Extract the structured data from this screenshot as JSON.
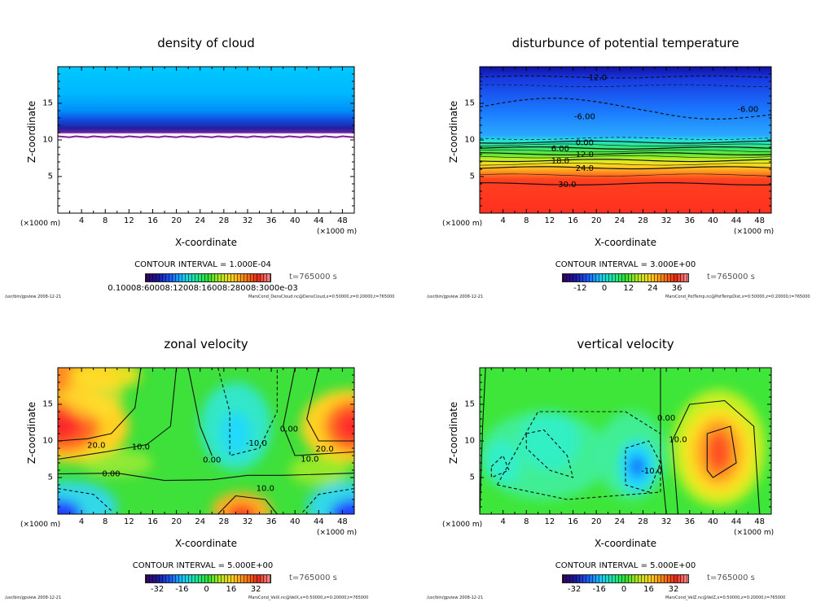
{
  "chart_data": [
    {
      "type": "heatmap",
      "title": "density of cloud",
      "xlabel": "X-coordinate",
      "ylabel": "Z-coordinate",
      "x_unit": "(×1000 m)",
      "z_unit": "(×1000 m)",
      "xlim": [
        0,
        50
      ],
      "ylim": [
        0,
        20
      ],
      "xticks": [
        4,
        8,
        12,
        16,
        20,
        24,
        28,
        32,
        36,
        40,
        44,
        48
      ],
      "yticks": [
        5,
        10,
        15
      ],
      "contour_interval": "CONTOUR INTERVAL = 1.000E-04",
      "colorbar_labels": "0.10008:60008:12008:16008:28008:3000e-03",
      "time": "t=765000 s",
      "footer_left": "/usr/bin/gpview  2008-12-21",
      "footer_right": "MarsCond_DensCloud.nc@DensCloud,x=0:50000,z=0:20000,t=765000",
      "field": "cloud layer above z≈10.5 km, densest at cloud base (purple), empty (white) below",
      "contour_labels": []
    },
    {
      "type": "heatmap",
      "title": "disturbunce of potential temperature",
      "xlabel": "X-coordinate",
      "ylabel": "Z-coordinate",
      "x_unit": "(×1000 m)",
      "z_unit": "(×1000 m)",
      "xlim": [
        0,
        50
      ],
      "ylim": [
        0,
        20
      ],
      "xticks": [
        4,
        8,
        12,
        16,
        20,
        24,
        28,
        32,
        36,
        40,
        44,
        48
      ],
      "yticks": [
        5,
        10,
        15
      ],
      "contour_interval": "CONTOUR INTERVAL = 3.000E+00",
      "colorbar_ticks": [
        -12,
        0,
        12,
        24,
        36
      ],
      "colorbar_range": [
        -21,
        42
      ],
      "time": "t=765000 s",
      "footer_left": "/usr/bin/gpview  2008-12-21",
      "footer_right": "MarsCond_PotTemp.nc@PotTempDist,x=0:50000,z=0:20000,t=765000",
      "contour_labels": [
        {
          "text": "-12.0",
          "x": 20,
          "z": 18.6
        },
        {
          "text": "-6.00",
          "x": 18,
          "z": 13.3
        },
        {
          "text": "-6.00",
          "x": 46,
          "z": 14.3
        },
        {
          "text": "0.00",
          "x": 18,
          "z": 9.7
        },
        {
          "text": "6.00",
          "x": 18,
          "z": 8.9
        },
        {
          "text": "12.0",
          "x": 18,
          "z": 8.1
        },
        {
          "text": "18.0",
          "x": 18,
          "z": 7.2
        },
        {
          "text": "24.0",
          "x": 18,
          "z": 6.2
        },
        {
          "text": "30.0",
          "x": 15,
          "z": 4.0
        }
      ]
    },
    {
      "type": "heatmap",
      "title": "zonal velocity",
      "xlabel": "X-coordinate",
      "ylabel": "Z-coordinate",
      "x_unit": "(×1000 m)",
      "z_unit": "(×1000 m)",
      "xlim": [
        0,
        50
      ],
      "ylim": [
        0,
        20
      ],
      "xticks": [
        4,
        8,
        12,
        16,
        20,
        24,
        28,
        32,
        36,
        40,
        44,
        48
      ],
      "yticks": [
        5,
        10,
        15
      ],
      "contour_interval": "CONTOUR INTERVAL = 5.000E+00",
      "colorbar_ticks": [
        -32,
        -16,
        0,
        16,
        32
      ],
      "colorbar_range": [
        -40,
        42
      ],
      "time": "t=765000 s",
      "footer_left": "/usr/bin/gpview  2008-12-21",
      "footer_right": "MarsCond_VelX.nc@VelX,x=0:50000,z=0:20000,t=765000",
      "contour_labels": [
        {
          "text": "20.0",
          "x": 6.5,
          "z": 9.5
        },
        {
          "text": "10.0",
          "x": 14,
          "z": 9.3
        },
        {
          "text": "0.00",
          "x": 9,
          "z": 5.6
        },
        {
          "text": "0.00",
          "x": 26,
          "z": 7.5
        },
        {
          "text": "-10.0",
          "x": 33.5,
          "z": 9.8
        },
        {
          "text": "0.00",
          "x": 39,
          "z": 11.7
        },
        {
          "text": "20.0",
          "x": 45,
          "z": 9.0
        },
        {
          "text": "10.0",
          "x": 42.5,
          "z": 7.6
        },
        {
          "text": "10.0",
          "x": 35,
          "z": 3.6
        }
      ]
    },
    {
      "type": "heatmap",
      "title": "vertical velocity",
      "xlabel": "X-coordinate",
      "ylabel": "Z-coordinate",
      "x_unit": "(×1000 m)",
      "z_unit": "(×1000 m)",
      "xlim": [
        0,
        50
      ],
      "ylim": [
        0,
        20
      ],
      "xticks": [
        4,
        8,
        12,
        16,
        20,
        24,
        28,
        32,
        36,
        40,
        44,
        48
      ],
      "yticks": [
        5,
        10,
        15
      ],
      "contour_interval": "CONTOUR INTERVAL = 5.000E+00",
      "colorbar_ticks": [
        -32,
        -16,
        0,
        16,
        32
      ],
      "colorbar_range": [
        -40,
        42
      ],
      "time": "t=765000 s",
      "footer_left": "/usr/bin/gpview  2008-12-21",
      "footer_right": "MarsCond_VelZ.nc@VelZ,x=0:50000,z=0:20000,t=765000",
      "contour_labels": [
        {
          "text": "0.00",
          "x": 32,
          "z": 13.2
        },
        {
          "text": "10.0",
          "x": 34,
          "z": 10.3
        },
        {
          "text": "-10.0",
          "x": 29.5,
          "z": 6.0
        }
      ]
    }
  ]
}
